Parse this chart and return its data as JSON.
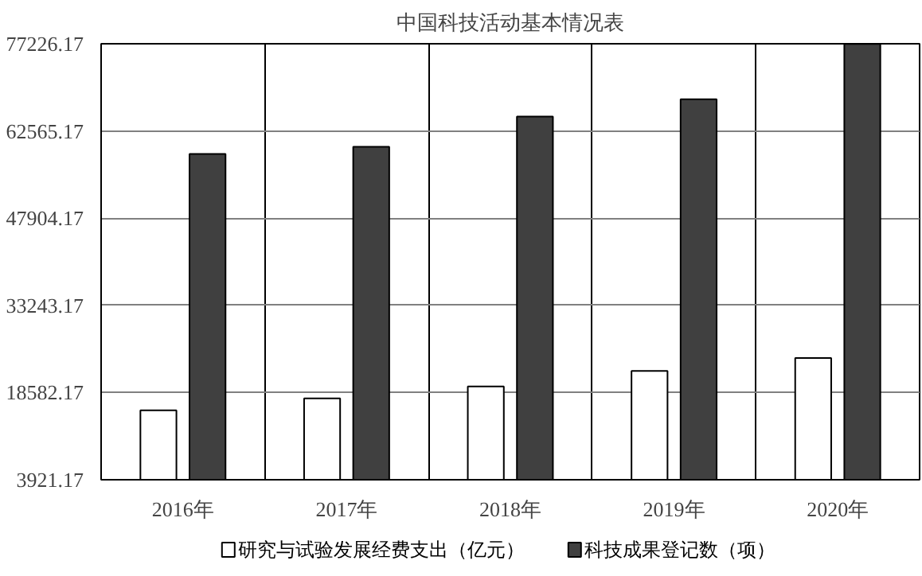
{
  "chart_data": {
    "type": "bar",
    "title": "中国科技活动基本情况表",
    "categories": [
      "2016年",
      "2017年",
      "2018年",
      "2019年",
      "2020年"
    ],
    "series": [
      {
        "name": "研究与试验发展经费支出（亿元）",
        "color": "#ffffff",
        "values": [
          15600,
          17600,
          19600,
          22200,
          24400
        ]
      },
      {
        "name": "科技成果登记数（项）",
        "color": "#404040",
        "values": [
          58700,
          59900,
          65000,
          67900,
          77200
        ]
      }
    ],
    "ylim": [
      3921.17,
      77226.17
    ],
    "yticks": [
      3921.17,
      18582.17,
      33243.17,
      47904.17,
      62565.17,
      77226.17
    ],
    "grid": true,
    "legend": "bottom"
  }
}
